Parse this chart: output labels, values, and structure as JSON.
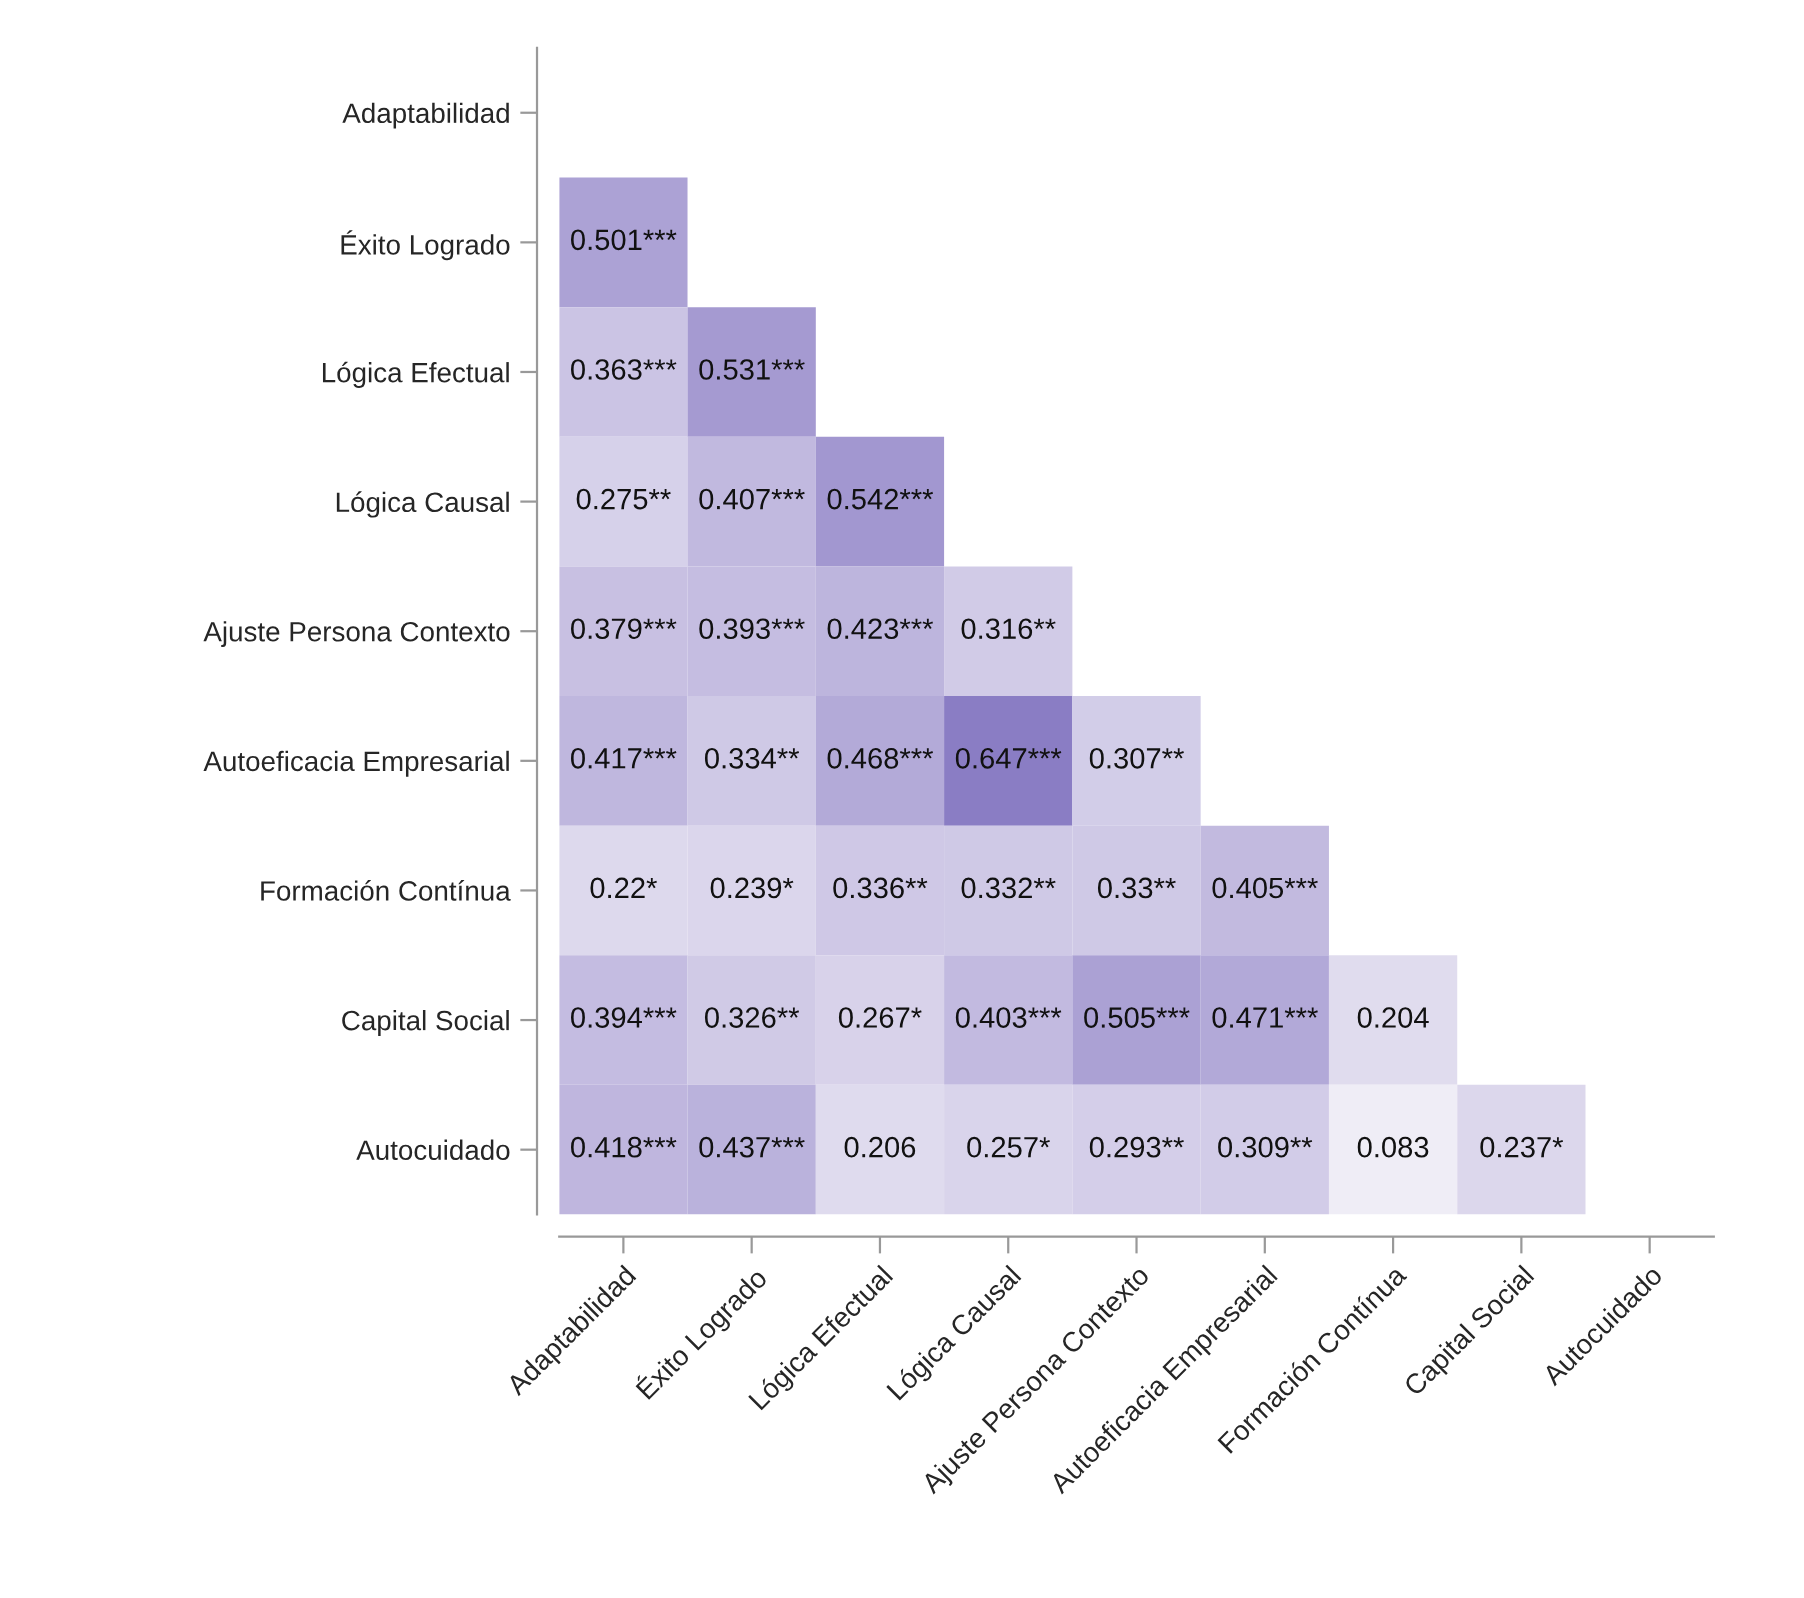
{
  "chart_data": {
    "type": "heatmap",
    "categories": [
      "Adaptabilidad",
      "Éxito Logrado",
      "Lógica Efectual",
      "Lógica Causal",
      "Ajuste Persona Contexto",
      "Autoeficacia Empresarial",
      "Formación Contínua",
      "Capital Social",
      "Autocuidado"
    ],
    "y_categories": [
      "Adaptabilidad",
      "Éxito Logrado",
      "Lógica Efectual",
      "Lógica Causal",
      "Ajuste Persona Contexto",
      "Autoeficacia Empresarial",
      "Formación Contínua",
      "Capital Social",
      "Autocuidado"
    ],
    "cells": [
      [
        null,
        null,
        null,
        null,
        null,
        null,
        null,
        null,
        null
      ],
      [
        0.501,
        null,
        null,
        null,
        null,
        null,
        null,
        null,
        null
      ],
      [
        0.363,
        0.531,
        null,
        null,
        null,
        null,
        null,
        null,
        null
      ],
      [
        0.275,
        0.407,
        0.542,
        null,
        null,
        null,
        null,
        null,
        null
      ],
      [
        0.379,
        0.393,
        0.423,
        0.316,
        null,
        null,
        null,
        null,
        null
      ],
      [
        0.417,
        0.334,
        0.468,
        0.647,
        0.307,
        null,
        null,
        null,
        null
      ],
      [
        0.22,
        0.239,
        0.336,
        0.332,
        0.33,
        0.405,
        null,
        null,
        null
      ],
      [
        0.394,
        0.326,
        0.267,
        0.403,
        0.505,
        0.471,
        0.204,
        null,
        null
      ],
      [
        0.418,
        0.437,
        0.206,
        0.257,
        0.293,
        0.309,
        0.083,
        0.237,
        null
      ]
    ],
    "cell_labels": [
      [
        null,
        null,
        null,
        null,
        null,
        null,
        null,
        null,
        null
      ],
      [
        "0.501***",
        null,
        null,
        null,
        null,
        null,
        null,
        null,
        null
      ],
      [
        "0.363***",
        "0.531***",
        null,
        null,
        null,
        null,
        null,
        null,
        null
      ],
      [
        "0.275**",
        "0.407***",
        "0.542***",
        null,
        null,
        null,
        null,
        null,
        null
      ],
      [
        "0.379***",
        "0.393***",
        "0.423***",
        "0.316**",
        null,
        null,
        null,
        null,
        null
      ],
      [
        "0.417***",
        "0.334**",
        "0.468***",
        "0.647***",
        "0.307**",
        null,
        null,
        null,
        null
      ],
      [
        "0.22*",
        "0.239*",
        "0.336**",
        "0.332**",
        "0.33**",
        "0.405***",
        null,
        null,
        null
      ],
      [
        "0.394***",
        "0.326**",
        "0.267*",
        "0.403***",
        "0.505***",
        "0.471***",
        "0.204",
        null,
        null
      ],
      [
        "0.418***",
        "0.437***",
        "0.206",
        "0.257*",
        "0.293**",
        "0.309**",
        "0.083",
        "0.237*",
        null
      ]
    ],
    "grid": false
  }
}
